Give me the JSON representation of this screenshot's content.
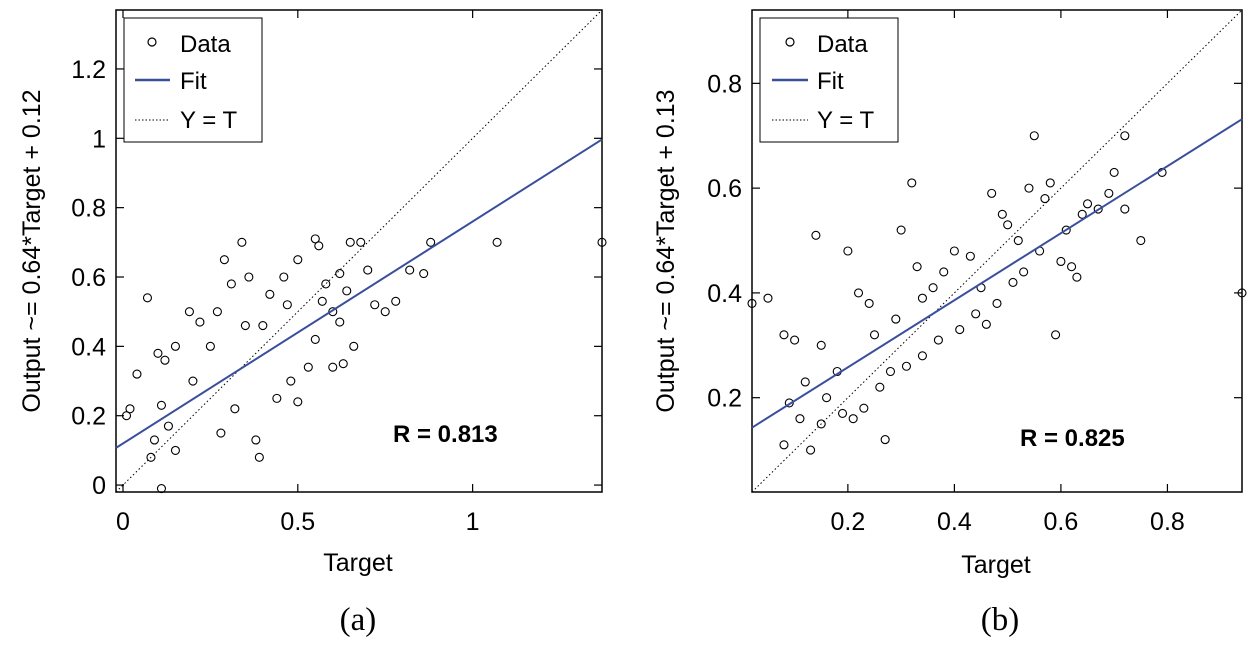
{
  "chart_data": [
    {
      "type": "scatter",
      "panel": "a",
      "caption": "(a)",
      "xlabel": "Target",
      "ylabel": "Output ~= 0.64*Target + 0.12",
      "xlim": [
        -0.02,
        1.37
      ],
      "ylim": [
        -0.02,
        1.37
      ],
      "xticks": [
        0,
        0.5,
        1
      ],
      "xtick_labels": [
        "0",
        "0.5",
        "1"
      ],
      "yticks": [
        0,
        0.2,
        0.4,
        0.6,
        0.8,
        1,
        1.2
      ],
      "ytick_labels": [
        "0",
        "0.2",
        "0.4",
        "0.6",
        "0.8",
        "1",
        "1.2"
      ],
      "legend": {
        "position": "top-left",
        "entries": [
          "Data",
          "Fit",
          "Y = T"
        ]
      },
      "annotation": "R = 0.813",
      "fit": {
        "slope": 0.64,
        "intercept": 0.12,
        "color": "#3a4f9c"
      },
      "identity_line": true,
      "points": [
        [
          0.01,
          0.2
        ],
        [
          0.02,
          0.22
        ],
        [
          0.04,
          0.32
        ],
        [
          0.07,
          0.54
        ],
        [
          0.09,
          0.13
        ],
        [
          0.1,
          0.38
        ],
        [
          0.11,
          0.23
        ],
        [
          0.11,
          -0.01
        ],
        [
          0.12,
          0.36
        ],
        [
          0.13,
          0.17
        ],
        [
          0.15,
          0.4
        ],
        [
          0.19,
          0.5
        ],
        [
          0.2,
          0.3
        ],
        [
          0.22,
          0.47
        ],
        [
          0.25,
          0.4
        ],
        [
          0.27,
          0.5
        ],
        [
          0.29,
          0.65
        ],
        [
          0.31,
          0.58
        ],
        [
          0.34,
          0.7
        ],
        [
          0.36,
          0.6
        ],
        [
          0.38,
          0.13
        ],
        [
          0.39,
          0.08
        ],
        [
          0.42,
          0.55
        ],
        [
          0.46,
          0.6
        ],
        [
          0.5,
          0.65
        ],
        [
          0.55,
          0.71
        ],
        [
          0.56,
          0.69
        ],
        [
          0.58,
          0.58
        ],
        [
          0.62,
          0.61
        ],
        [
          0.64,
          0.56
        ],
        [
          0.65,
          0.7
        ],
        [
          0.68,
          0.7
        ],
        [
          0.7,
          0.62
        ],
        [
          0.72,
          0.52
        ],
        [
          0.75,
          0.5
        ],
        [
          0.78,
          0.53
        ],
        [
          0.82,
          0.62
        ],
        [
          0.86,
          0.61
        ],
        [
          0.88,
          0.7
        ],
        [
          1.07,
          0.7
        ],
        [
          1.38,
          0.7
        ],
        [
          0.48,
          0.3
        ],
        [
          0.5,
          0.24
        ],
        [
          0.53,
          0.34
        ],
        [
          0.6,
          0.34
        ],
        [
          0.63,
          0.35
        ],
        [
          0.66,
          0.4
        ],
        [
          0.6,
          0.5
        ],
        [
          0.15,
          0.1
        ],
        [
          0.08,
          0.08
        ],
        [
          0.28,
          0.15
        ],
        [
          0.32,
          0.22
        ],
        [
          0.44,
          0.25
        ],
        [
          0.55,
          0.42
        ],
        [
          0.62,
          0.47
        ],
        [
          0.57,
          0.53
        ],
        [
          0.47,
          0.52
        ],
        [
          0.4,
          0.46
        ],
        [
          0.35,
          0.46
        ]
      ]
    },
    {
      "type": "scatter",
      "panel": "b",
      "caption": "(b)",
      "xlabel": "Target",
      "ylabel": "Output ~= 0.64*Target + 0.13",
      "xlim": [
        0.02,
        0.94
      ],
      "ylim": [
        0.02,
        0.94
      ],
      "xticks": [
        0.2,
        0.4,
        0.6,
        0.8
      ],
      "xtick_labels": [
        "0.2",
        "0.4",
        "0.6",
        "0.8"
      ],
      "yticks": [
        0.2,
        0.4,
        0.6,
        0.8
      ],
      "ytick_labels": [
        "0.2",
        "0.4",
        "0.6",
        "0.8"
      ],
      "legend": {
        "position": "top-left",
        "entries": [
          "Data",
          "Fit",
          "Y = T"
        ]
      },
      "annotation": "R = 0.825",
      "fit": {
        "slope": 0.64,
        "intercept": 0.13,
        "color": "#3a4f9c"
      },
      "identity_line": true,
      "points": [
        [
          0.02,
          0.38
        ],
        [
          0.05,
          0.39
        ],
        [
          0.08,
          0.32
        ],
        [
          0.1,
          0.31
        ],
        [
          0.12,
          0.23
        ],
        [
          0.14,
          0.51
        ],
        [
          0.15,
          0.3
        ],
        [
          0.16,
          0.2
        ],
        [
          0.18,
          0.25
        ],
        [
          0.2,
          0.48
        ],
        [
          0.22,
          0.4
        ],
        [
          0.24,
          0.38
        ],
        [
          0.25,
          0.32
        ],
        [
          0.27,
          0.12
        ],
        [
          0.29,
          0.35
        ],
        [
          0.3,
          0.52
        ],
        [
          0.32,
          0.61
        ],
        [
          0.33,
          0.45
        ],
        [
          0.34,
          0.39
        ],
        [
          0.36,
          0.41
        ],
        [
          0.38,
          0.44
        ],
        [
          0.4,
          0.48
        ],
        [
          0.43,
          0.47
        ],
        [
          0.45,
          0.41
        ],
        [
          0.47,
          0.59
        ],
        [
          0.49,
          0.55
        ],
        [
          0.5,
          0.53
        ],
        [
          0.52,
          0.5
        ],
        [
          0.54,
          0.6
        ],
        [
          0.55,
          0.7
        ],
        [
          0.57,
          0.58
        ],
        [
          0.58,
          0.61
        ],
        [
          0.6,
          0.46
        ],
        [
          0.62,
          0.45
        ],
        [
          0.63,
          0.43
        ],
        [
          0.65,
          0.57
        ],
        [
          0.67,
          0.56
        ],
        [
          0.69,
          0.59
        ],
        [
          0.7,
          0.63
        ],
        [
          0.72,
          0.7
        ],
        [
          0.72,
          0.56
        ],
        [
          0.75,
          0.5
        ],
        [
          0.79,
          0.63
        ],
        [
          0.94,
          0.4
        ],
        [
          0.08,
          0.11
        ],
        [
          0.11,
          0.16
        ],
        [
          0.13,
          0.1
        ],
        [
          0.15,
          0.15
        ],
        [
          0.09,
          0.19
        ],
        [
          0.19,
          0.17
        ],
        [
          0.21,
          0.16
        ],
        [
          0.23,
          0.18
        ],
        [
          0.26,
          0.22
        ],
        [
          0.28,
          0.25
        ],
        [
          0.31,
          0.26
        ],
        [
          0.34,
          0.28
        ],
        [
          0.37,
          0.31
        ],
        [
          0.41,
          0.33
        ],
        [
          0.44,
          0.36
        ],
        [
          0.46,
          0.34
        ],
        [
          0.48,
          0.38
        ],
        [
          0.51,
          0.42
        ],
        [
          0.53,
          0.44
        ],
        [
          0.56,
          0.48
        ],
        [
          0.59,
          0.32
        ],
        [
          0.61,
          0.52
        ],
        [
          0.64,
          0.55
        ]
      ]
    }
  ]
}
